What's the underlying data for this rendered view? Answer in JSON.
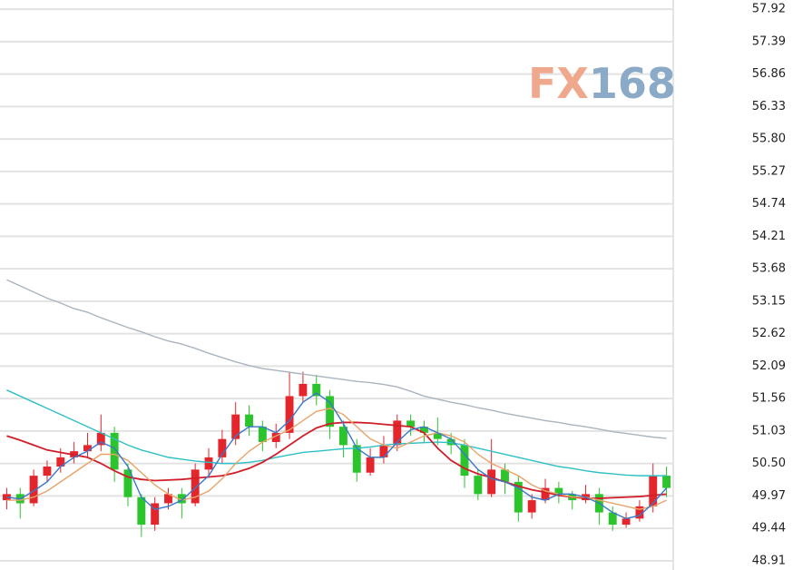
{
  "chart_data": {
    "type": "candlestick",
    "watermark": {
      "parts": [
        "FX",
        "168"
      ],
      "colors": [
        "#f0a88c",
        "#8aaac8"
      ]
    },
    "categories": [
      null,
      null,
      null,
      null,
      null,
      null,
      null,
      null,
      null,
      null,
      null,
      null,
      null,
      null,
      null,
      null,
      null,
      null,
      null,
      null,
      null,
      null,
      null,
      null,
      null,
      null,
      null,
      null,
      null,
      null,
      null,
      null,
      null,
      null,
      null,
      null,
      null,
      null,
      null,
      null,
      null,
      null,
      null,
      null,
      null,
      null,
      null,
      null,
      null,
      null
    ],
    "open": [
      49.9,
      50.0,
      49.85,
      50.3,
      50.45,
      50.6,
      50.7,
      50.8,
      51.0,
      50.4,
      49.95,
      49.5,
      49.85,
      50.0,
      49.85,
      50.4,
      50.6,
      50.9,
      51.3,
      51.1,
      50.85,
      51.0,
      51.6,
      51.8,
      51.6,
      51.1,
      50.8,
      50.35,
      50.6,
      50.8,
      51.2,
      51.1,
      51.0,
      50.9,
      50.8,
      50.3,
      50.0,
      50.4,
      50.2,
      49.7,
      49.9,
      50.1,
      50.0,
      49.9,
      50.0,
      49.7,
      49.5,
      49.6,
      49.8,
      50.3
    ],
    "high": [
      50.1,
      50.1,
      50.4,
      50.55,
      50.75,
      50.85,
      51.0,
      51.3,
      51.1,
      50.5,
      50.0,
      49.95,
      50.1,
      50.1,
      50.5,
      50.75,
      51.05,
      51.5,
      51.45,
      51.2,
      51.15,
      52.0,
      52.0,
      51.95,
      51.7,
      51.2,
      50.9,
      50.75,
      50.95,
      51.3,
      51.3,
      51.2,
      51.25,
      51.0,
      50.9,
      50.4,
      50.9,
      50.5,
      50.3,
      50.0,
      50.25,
      50.2,
      50.05,
      50.15,
      50.1,
      49.8,
      49.7,
      49.9,
      50.5,
      50.45
    ],
    "low": [
      49.75,
      49.6,
      49.8,
      50.2,
      50.35,
      50.5,
      50.6,
      50.7,
      50.2,
      49.8,
      49.3,
      49.4,
      49.75,
      49.6,
      49.8,
      50.3,
      50.5,
      50.8,
      50.95,
      50.7,
      50.75,
      50.9,
      51.5,
      51.45,
      50.9,
      50.6,
      50.2,
      50.3,
      50.5,
      50.7,
      50.95,
      50.85,
      50.8,
      50.65,
      50.1,
      49.9,
      49.95,
      50.0,
      49.55,
      49.6,
      49.85,
      49.85,
      49.75,
      49.85,
      49.5,
      49.4,
      49.45,
      49.55,
      49.7,
      49.95
    ],
    "close": [
      50.0,
      49.85,
      50.3,
      50.45,
      50.6,
      50.7,
      50.8,
      51.0,
      50.4,
      49.95,
      49.5,
      49.85,
      50.0,
      49.85,
      50.4,
      50.6,
      50.9,
      51.3,
      51.1,
      50.85,
      51.0,
      51.6,
      51.8,
      51.6,
      51.1,
      50.8,
      50.35,
      50.6,
      50.8,
      51.2,
      51.1,
      51.0,
      50.9,
      50.8,
      50.3,
      50.0,
      50.4,
      50.2,
      49.7,
      49.9,
      50.1,
      50.0,
      49.9,
      50.0,
      49.7,
      49.5,
      49.6,
      49.8,
      50.3,
      50.1
    ],
    "up_color": "#e4262c",
    "down_color": "#2cc42c",
    "series": [
      {
        "color": "#aab4be",
        "values": [
          53.5,
          53.4,
          53.3,
          53.2,
          53.12,
          53.03,
          52.97,
          52.88,
          52.8,
          52.72,
          52.65,
          52.57,
          52.5,
          52.45,
          52.38,
          52.3,
          52.23,
          52.16,
          52.1,
          52.05,
          52.02,
          51.99,
          51.96,
          51.93,
          51.9,
          51.87,
          51.84,
          51.82,
          51.79,
          51.75,
          51.68,
          51.6,
          51.55,
          51.5,
          51.46,
          51.41,
          51.37,
          51.32,
          51.28,
          51.24,
          51.2,
          51.17,
          51.13,
          51.1,
          51.06,
          51.02,
          50.99,
          50.96,
          50.93,
          50.91
        ]
      },
      {
        "color": "#2ec0c6",
        "values": [
          51.7,
          51.6,
          51.5,
          51.4,
          51.3,
          51.2,
          51.1,
          51.0,
          50.9,
          50.8,
          50.72,
          50.66,
          50.6,
          50.57,
          50.54,
          50.52,
          50.5,
          50.5,
          50.52,
          50.55,
          50.6,
          50.64,
          50.68,
          50.7,
          50.72,
          50.74,
          50.75,
          50.77,
          50.8,
          50.82,
          50.83,
          50.84,
          50.85,
          50.84,
          50.8,
          50.75,
          50.7,
          50.65,
          50.6,
          50.55,
          50.5,
          50.45,
          50.42,
          50.38,
          50.35,
          50.33,
          50.31,
          50.3,
          50.3,
          50.3
        ]
      },
      {
        "color": "#d01f2a",
        "values": [
          50.95,
          50.88,
          50.8,
          50.72,
          50.68,
          50.64,
          50.6,
          50.5,
          50.38,
          50.28,
          50.24,
          50.22,
          50.23,
          50.24,
          50.26,
          50.28,
          50.3,
          50.35,
          50.42,
          50.52,
          50.65,
          50.8,
          50.95,
          51.08,
          51.15,
          51.17,
          51.17,
          51.16,
          51.14,
          51.12,
          51.1,
          51.0,
          50.75,
          50.55,
          50.42,
          50.33,
          50.27,
          50.2,
          50.13,
          50.07,
          50.03,
          49.98,
          49.95,
          49.93,
          49.93,
          49.94,
          49.95,
          49.96,
          49.98,
          50.0
        ]
      },
      {
        "color": "#e8a36a",
        "values": [
          49.9,
          49.9,
          49.95,
          50.05,
          50.2,
          50.35,
          50.5,
          50.65,
          50.65,
          50.55,
          50.35,
          50.15,
          50.0,
          49.9,
          49.95,
          50.05,
          50.25,
          50.5,
          50.7,
          50.85,
          50.95,
          51.05,
          51.2,
          51.35,
          51.4,
          51.3,
          51.1,
          50.9,
          50.8,
          50.75,
          50.85,
          50.95,
          51.0,
          50.95,
          50.85,
          50.65,
          50.5,
          50.4,
          50.3,
          50.15,
          50.05,
          50.0,
          49.95,
          49.95,
          49.9,
          49.85,
          49.8,
          49.75,
          49.8,
          49.9
        ]
      },
      {
        "color": "#3a78c8",
        "values": [
          49.95,
          49.92,
          50.05,
          50.2,
          50.45,
          50.6,
          50.7,
          50.85,
          50.75,
          50.45,
          49.95,
          49.75,
          49.8,
          49.9,
          50.1,
          50.3,
          50.65,
          50.95,
          51.1,
          51.1,
          51.0,
          51.2,
          51.5,
          51.65,
          51.5,
          51.15,
          50.75,
          50.6,
          50.6,
          50.85,
          51.05,
          51.1,
          51.0,
          50.9,
          50.65,
          50.4,
          50.25,
          50.2,
          50.1,
          49.95,
          49.9,
          50.0,
          50.0,
          49.95,
          49.85,
          49.7,
          49.6,
          49.65,
          49.85,
          50.1
        ]
      }
    ],
    "ylim": [
      48.76,
      58.07
    ],
    "yticks": [
      57.92,
      57.39,
      56.86,
      56.33,
      {
        "value": 55.8,
        "label": "55.80"
      },
      55.27,
      54.74,
      54.21,
      53.68,
      53.15,
      52.62,
      52.09,
      51.56,
      51.03,
      {
        "value": 50.5,
        "label": "50.50"
      },
      49.97,
      49.44,
      48.91
    ],
    "grid": true
  }
}
